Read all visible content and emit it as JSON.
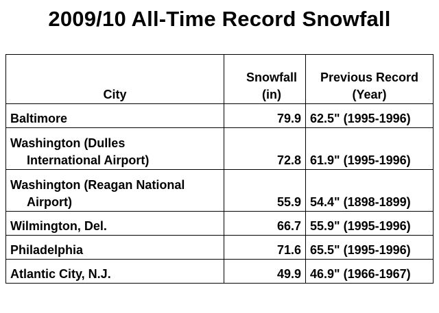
{
  "title": "2009/10 All-Time Record Snowfall",
  "table": {
    "headers": {
      "city": "City",
      "snowfall_line1": "Snowfall",
      "snowfall_line2": "(in)",
      "previous_line1": "Previous Record",
      "previous_line2": "(Year)"
    },
    "rows": [
      {
        "city_line1": "Baltimore",
        "city_line2": "",
        "snowfall": "79.9",
        "previous": "62.5\" (1995-1996)"
      },
      {
        "city_line1": "Washington (Dulles",
        "city_line2": "International Airport)",
        "snowfall": "72.8",
        "previous": "61.9\" (1995-1996)"
      },
      {
        "city_line1": "Washington (Reagan National",
        "city_line2": "Airport)",
        "snowfall": "55.9",
        "previous": "54.4\" (1898-1899)"
      },
      {
        "city_line1": "Wilmington, Del.",
        "city_line2": "",
        "snowfall": "66.7",
        "previous": "55.9\" (1995-1996)"
      },
      {
        "city_line1": "Philadelphia",
        "city_line2": "",
        "snowfall": "71.6",
        "previous": "65.5\" (1995-1996)"
      },
      {
        "city_line1": "Atlantic City, N.J.",
        "city_line2": "",
        "snowfall": "49.9",
        "previous": "46.9\" (1966-1967)"
      }
    ]
  }
}
